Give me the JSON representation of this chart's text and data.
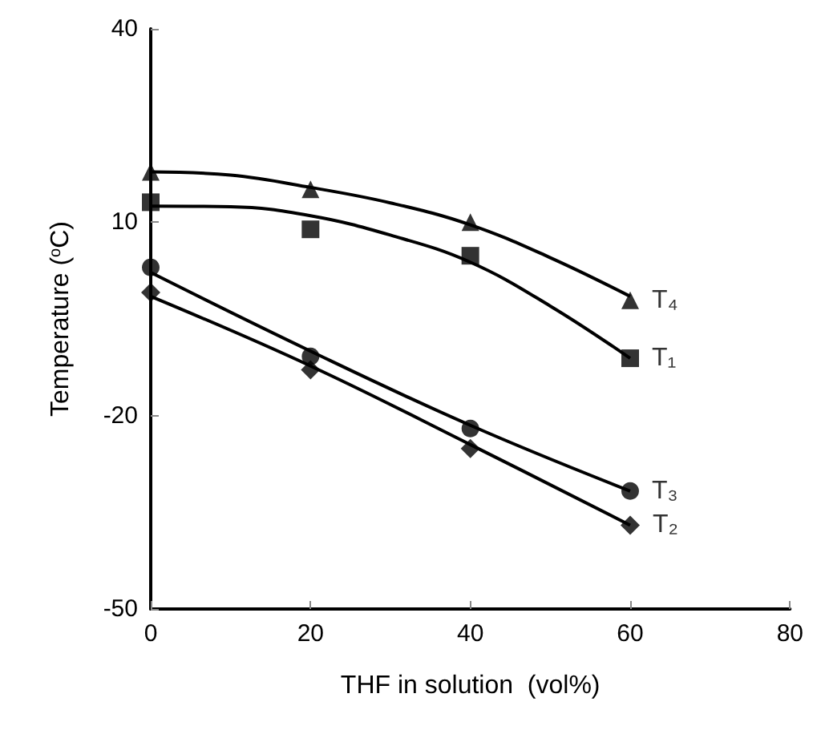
{
  "chart_data": {
    "type": "scatter",
    "xlabel": "THF in solution  (vol%)",
    "ylabel": "Temperature ($^{o}$C)",
    "xlim": [
      0,
      80
    ],
    "xticks": [
      0,
      20,
      40,
      60,
      80
    ],
    "ylim": [
      -50,
      40
    ],
    "yticks": [
      -50,
      -20,
      10,
      40
    ],
    "grid": false,
    "legend": false,
    "x": [
      0,
      20,
      40,
      60
    ],
    "series": [
      {
        "name": "T₄",
        "color": "#000000",
        "marker": "triangle",
        "values": [
          17.8,
          15.1,
          10,
          -2.1
        ]
      },
      {
        "name": "T₁",
        "color": "#000000",
        "marker": "square",
        "values": [
          13.1,
          8.9,
          4.8,
          -11.1
        ]
      },
      {
        "name": "T₃",
        "color": "#000000",
        "marker": "circle",
        "values": [
          3,
          -10.8,
          -22,
          -31.7
        ]
      },
      {
        "name": "T₂",
        "color": "#000000",
        "marker": "diamond",
        "values": [
          -0.9,
          -12.9,
          -25.1,
          -37
        ]
      },
      {
        "type": "line",
        "color": "#000000",
        "marker": "none",
        "x": [
          0,
          10,
          20,
          30,
          40,
          50,
          60
        ],
        "values": [
          17.8,
          17.3,
          15.4,
          13,
          9.6,
          4.5,
          -1.5
        ]
      },
      {
        "type": "line",
        "color": "#000000",
        "marker": "none",
        "x": [
          0,
          10,
          20,
          30,
          40,
          50,
          60
        ],
        "values": [
          12.5,
          12.4,
          11,
          8,
          3.8,
          -3,
          -11.1
        ]
      },
      {
        "type": "line",
        "color": "#000000",
        "marker": "none",
        "x": [
          0,
          20,
          40,
          60
        ],
        "values": [
          2.2,
          -10,
          -21.5,
          -31.7
        ]
      },
      {
        "type": "line",
        "color": "#000000",
        "marker": "none",
        "x": [
          0,
          20,
          40,
          60
        ],
        "values": [
          -1.5,
          -12.3,
          -24.5,
          -37
        ]
      }
    ]
  }
}
